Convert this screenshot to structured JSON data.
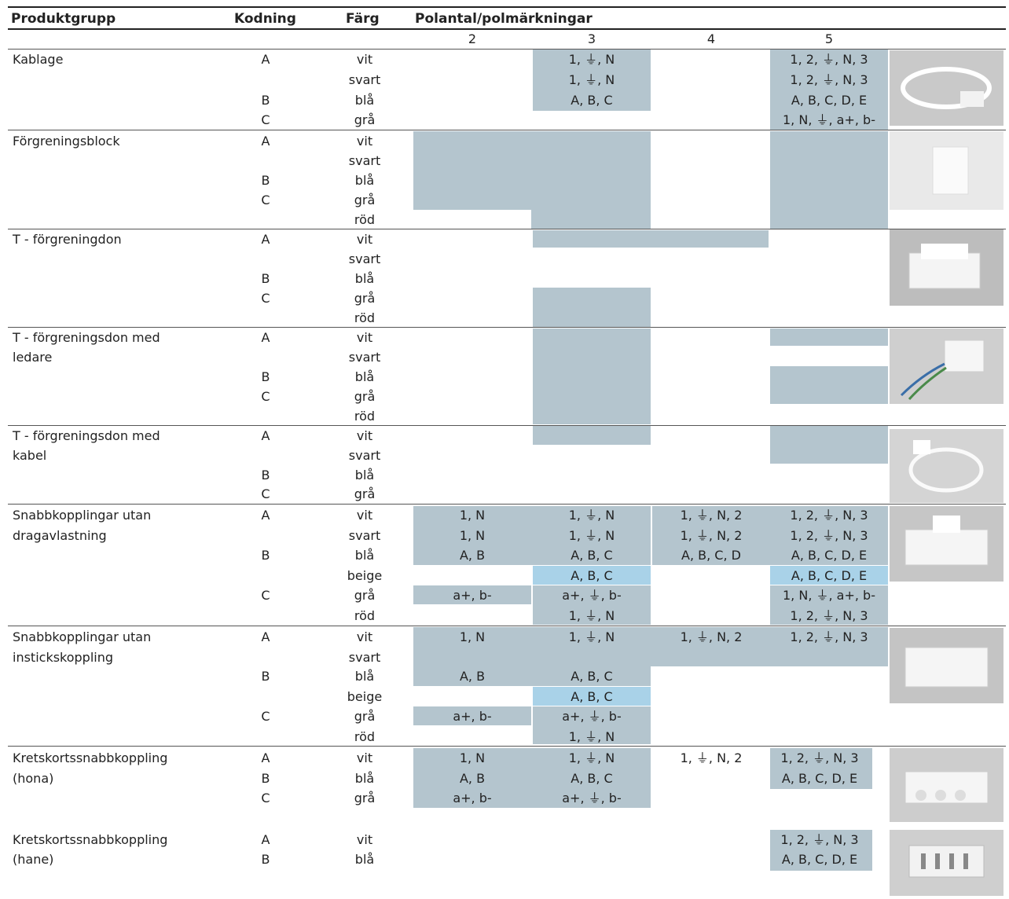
{
  "headers": {
    "produktgrupp": "Produktgrupp",
    "kodning": "Kodning",
    "farg": "Färg",
    "polantal": "Polantal/polmärkningar"
  },
  "pole_columns": [
    "2",
    "3",
    "4",
    "5"
  ],
  "rows": {
    "kablage": {
      "name_line1": "Kablage",
      "name_line2": "",
      "codes": [
        "A",
        "",
        "B",
        "C"
      ],
      "colors": [
        "vit",
        "svart",
        "blå",
        "grå"
      ],
      "col2": [
        "",
        "",
        "",
        ""
      ],
      "col3": [
        "1, ⏚, N",
        "1, ⏚, N",
        "A, B, C",
        ""
      ],
      "col4": [
        "",
        "",
        "",
        ""
      ],
      "col5": [
        "1, 2, ⏚, N, 3",
        "1, 2, ⏚, N, 3",
        "A, B, C, D, E",
        "1, N, ⏚, a+, b-"
      ]
    },
    "forgreningsblock": {
      "name_line1": "Förgreningsblock",
      "name_line2": "",
      "codes": [
        "A",
        "",
        "B",
        "C",
        ""
      ],
      "colors": [
        "vit",
        "svart",
        "blå",
        "grå",
        "röd"
      ]
    },
    "tforgreningdon": {
      "name_line1": "T - förgreningdon",
      "name_line2": "",
      "codes": [
        "A",
        "",
        "B",
        "C",
        ""
      ],
      "colors": [
        "vit",
        "svart",
        "blå",
        "grå",
        "röd"
      ]
    },
    "tforg_ledare": {
      "name_line1": "T - förgreningsdon med",
      "name_line2": "ledare",
      "codes": [
        "A",
        "",
        "B",
        "C",
        ""
      ],
      "colors": [
        "vit",
        "svart",
        "blå",
        "grå",
        "röd"
      ]
    },
    "tforg_kabel": {
      "name_line1": "T - förgreningsdon med",
      "name_line2": "kabel",
      "codes": [
        "A",
        "",
        "B",
        "C"
      ],
      "colors": [
        "vit",
        "svart",
        "blå",
        "grå"
      ]
    },
    "snabb_drag": {
      "name_line1": "Snabbkopplingar utan",
      "name_line2": "dragavlastning",
      "codes": [
        "A",
        "",
        "B",
        "",
        "C",
        ""
      ],
      "colors": [
        "vit",
        "svart",
        "blå",
        "beige",
        "grå",
        "röd"
      ],
      "col2": [
        "1, N",
        "1, N",
        "A, B",
        "",
        "a+, b-",
        ""
      ],
      "col3": [
        "1, ⏚, N",
        "1, ⏚, N",
        "A, B, C",
        "A, B, C",
        "a+, ⏚, b-",
        "1, ⏚, N"
      ],
      "col4": [
        "1, ⏚, N, 2",
        "1, ⏚, N, 2",
        "A, B, C, D",
        "",
        "",
        ""
      ],
      "col5": [
        "1, 2, ⏚, N, 3",
        "1, 2, ⏚, N, 3",
        "A, B, C, D, E",
        "A, B, C, D, E",
        "1, N, ⏚, a+, b-",
        "1, 2, ⏚, N, 3"
      ]
    },
    "snabb_inst": {
      "name_line1": "Snabbkopplingar utan",
      "name_line2": "instickskoppling",
      "codes": [
        "A",
        "",
        "B",
        "",
        "C",
        ""
      ],
      "colors": [
        "vit",
        "svart",
        "blå",
        "beige",
        "grå",
        "röd"
      ],
      "col2": [
        "1, N",
        "",
        "A, B",
        "",
        "a+, b-",
        ""
      ],
      "col3": [
        "1, ⏚, N",
        "",
        "A, B, C",
        "A, B, C",
        "a+, ⏚, b-",
        "1, ⏚, N"
      ],
      "col4": [
        "1, ⏚, N, 2",
        "",
        "",
        "",
        "",
        ""
      ],
      "col5": [
        "1, 2, ⏚, N, 3",
        "",
        "",
        "",
        "",
        ""
      ]
    },
    "krets_hona": {
      "name_line1": "Kretskortssnabbkoppling",
      "name_line2": "(hona)",
      "codes": [
        "A",
        "B",
        "C"
      ],
      "colors": [
        "vit",
        "blå",
        "grå"
      ],
      "col2": [
        "1, N",
        "A, B",
        "a+, b-"
      ],
      "col3": [
        "1, ⏚, N",
        "A, B, C",
        "a+, ⏚, b-"
      ],
      "col4": [
        "1, ⏚, N, 2",
        "",
        ""
      ],
      "col5": [
        "1, 2, ⏚, N, 3",
        "A, B, C, D, E",
        ""
      ]
    },
    "krets_hane": {
      "name_line1": "Kretskortssnabbkoppling",
      "name_line2": "(hane)",
      "codes": [
        "A",
        "B"
      ],
      "colors": [
        "vit",
        "blå"
      ],
      "col5": [
        "1, 2, ⏚, N, 3",
        "A, B, C, D, E"
      ]
    }
  },
  "product_images": [
    "kablage-cable-photo",
    "forgreningsblock-photo",
    "t-forgreningdon-photo",
    "t-forgreningsdon-ledare-photo",
    "t-forgreningsdon-kabel-photo",
    "snabbkoppling-dragavlastning-photo",
    "snabbkoppling-instick-photo",
    "kretskort-hona-photo",
    "kretskort-hane-photo"
  ],
  "colors": {
    "shade": "#b4c5ce",
    "light_blue": "#a9d2e8",
    "photo_bg": "#d0d0d0"
  }
}
